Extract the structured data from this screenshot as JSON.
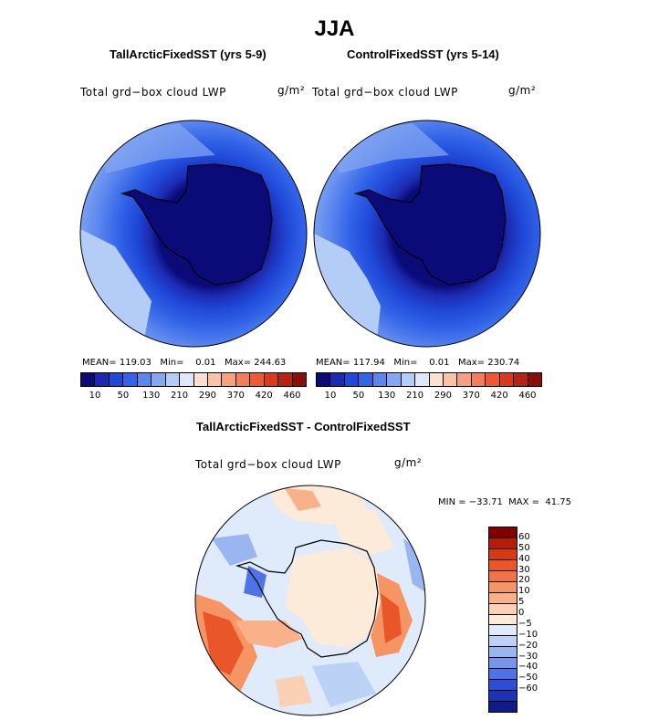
{
  "title": "JJA",
  "panels": [
    {
      "subtitle": "TallArcticFixedSST (yrs 5-9)",
      "var_label": "Total grd−box cloud LWP",
      "units": "g/m²",
      "mean_label": "MEAN=",
      "mean": "119.03",
      "min_label": "Min=",
      "min": "0.01",
      "max_label": "Max=",
      "max": "244.63"
    },
    {
      "subtitle": "ControlFixedSST (yrs 5-14)",
      "var_label": "Total grd−box cloud LWP",
      "units": "g/m²",
      "mean_label": "MEAN=",
      "mean": "117.94",
      "min_label": "Min=",
      "min": "0.01",
      "max_label": "Max=",
      "max": "230.74"
    }
  ],
  "abs_colorbar": {
    "colors": [
      "#0a0a78",
      "#1b2ab0",
      "#1f48d8",
      "#3264e8",
      "#5a86ee",
      "#86a8f2",
      "#b4cdf6",
      "#dde9fb",
      "#fde0d0",
      "#fbc2a5",
      "#f8a07c",
      "#f47e58",
      "#ee5a32",
      "#d83a1c",
      "#b42410",
      "#8a0e06"
    ],
    "ticks": [
      "10",
      "50",
      "130",
      "210",
      "290",
      "370",
      "420",
      "460"
    ]
  },
  "diff": {
    "subtitle": "TallArcticFixedSST - ControlFixedSST",
    "var_label": "Total grd−box cloud LWP",
    "units": "g/m²",
    "minmax_text": "MIN = −33.71  MAX =  41.75",
    "colorbar": {
      "colors": [
        "#800000",
        "#b51d0a",
        "#d53a14",
        "#e8562a",
        "#f27346",
        "#f79464",
        "#fab089",
        "#fcd0b4",
        "#fdebd9",
        "#dfeafb",
        "#bcd1f6",
        "#99b6f1",
        "#7596ec",
        "#4e73e6",
        "#2d4fd8",
        "#1b33b5",
        "#0e1c86"
      ],
      "ticks": [
        "60",
        "50",
        "40",
        "30",
        "20",
        "10",
        "5",
        "0",
        "−5",
        "−10",
        "−20",
        "−30",
        "−40",
        "−50",
        "−60"
      ]
    }
  }
}
